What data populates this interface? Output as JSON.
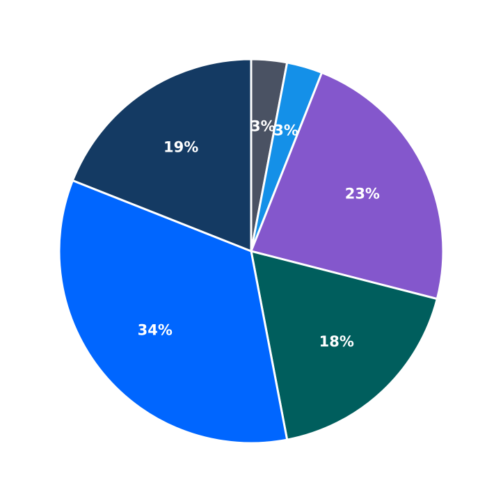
{
  "chart_data": {
    "type": "pie",
    "values": [
      3,
      3,
      23,
      18,
      34,
      19
    ],
    "value_labels": [
      "3%",
      "3%",
      "23%",
      "18%",
      "34%",
      "19%"
    ],
    "colors": [
      "#4a5263",
      "#1490e8",
      "#8457cc",
      "#005e5d",
      "#0066ff",
      "#143a63"
    ]
  }
}
